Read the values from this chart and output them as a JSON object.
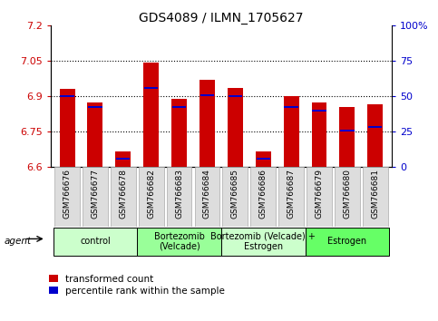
{
  "title": "GDS4089 / ILMN_1705627",
  "samples": [
    "GSM766676",
    "GSM766677",
    "GSM766678",
    "GSM766682",
    "GSM766683",
    "GSM766684",
    "GSM766685",
    "GSM766686",
    "GSM766687",
    "GSM766679",
    "GSM766680",
    "GSM766681"
  ],
  "red_values": [
    6.93,
    6.875,
    6.665,
    7.045,
    6.89,
    6.97,
    6.935,
    6.665,
    6.9,
    6.875,
    6.855,
    6.865
  ],
  "blue_values": [
    6.9,
    6.855,
    6.635,
    6.935,
    6.855,
    6.905,
    6.9,
    6.635,
    6.855,
    6.84,
    6.755,
    6.77
  ],
  "ymin": 6.6,
  "ymax": 7.2,
  "yticks_left": [
    6.6,
    6.75,
    6.9,
    7.05,
    7.2
  ],
  "yticks_right": [
    0,
    25,
    50,
    75,
    100
  ],
  "groups": [
    {
      "label": "control",
      "start": 0,
      "end": 3,
      "color": "#ccffcc"
    },
    {
      "label": "Bortezomib\n(Velcade)",
      "start": 3,
      "end": 6,
      "color": "#99ff99"
    },
    {
      "label": "Bortezomib (Velcade) +\nEstrogen",
      "start": 6,
      "end": 9,
      "color": "#ccffcc"
    },
    {
      "label": "Estrogen",
      "start": 9,
      "end": 12,
      "color": "#66ff66"
    }
  ],
  "bar_color": "#cc0000",
  "dot_color": "#0000cc",
  "bar_width": 0.55,
  "base": 6.6,
  "background_color": "#ffffff",
  "tick_label_color_left": "#cc0000",
  "tick_label_color_right": "#0000cc",
  "legend_red": "transformed count",
  "legend_blue": "percentile rank within the sample",
  "agent_label": "agent",
  "title_fontsize": 10,
  "tick_fontsize": 8,
  "sample_fontsize": 6.5,
  "group_fontsize": 7
}
